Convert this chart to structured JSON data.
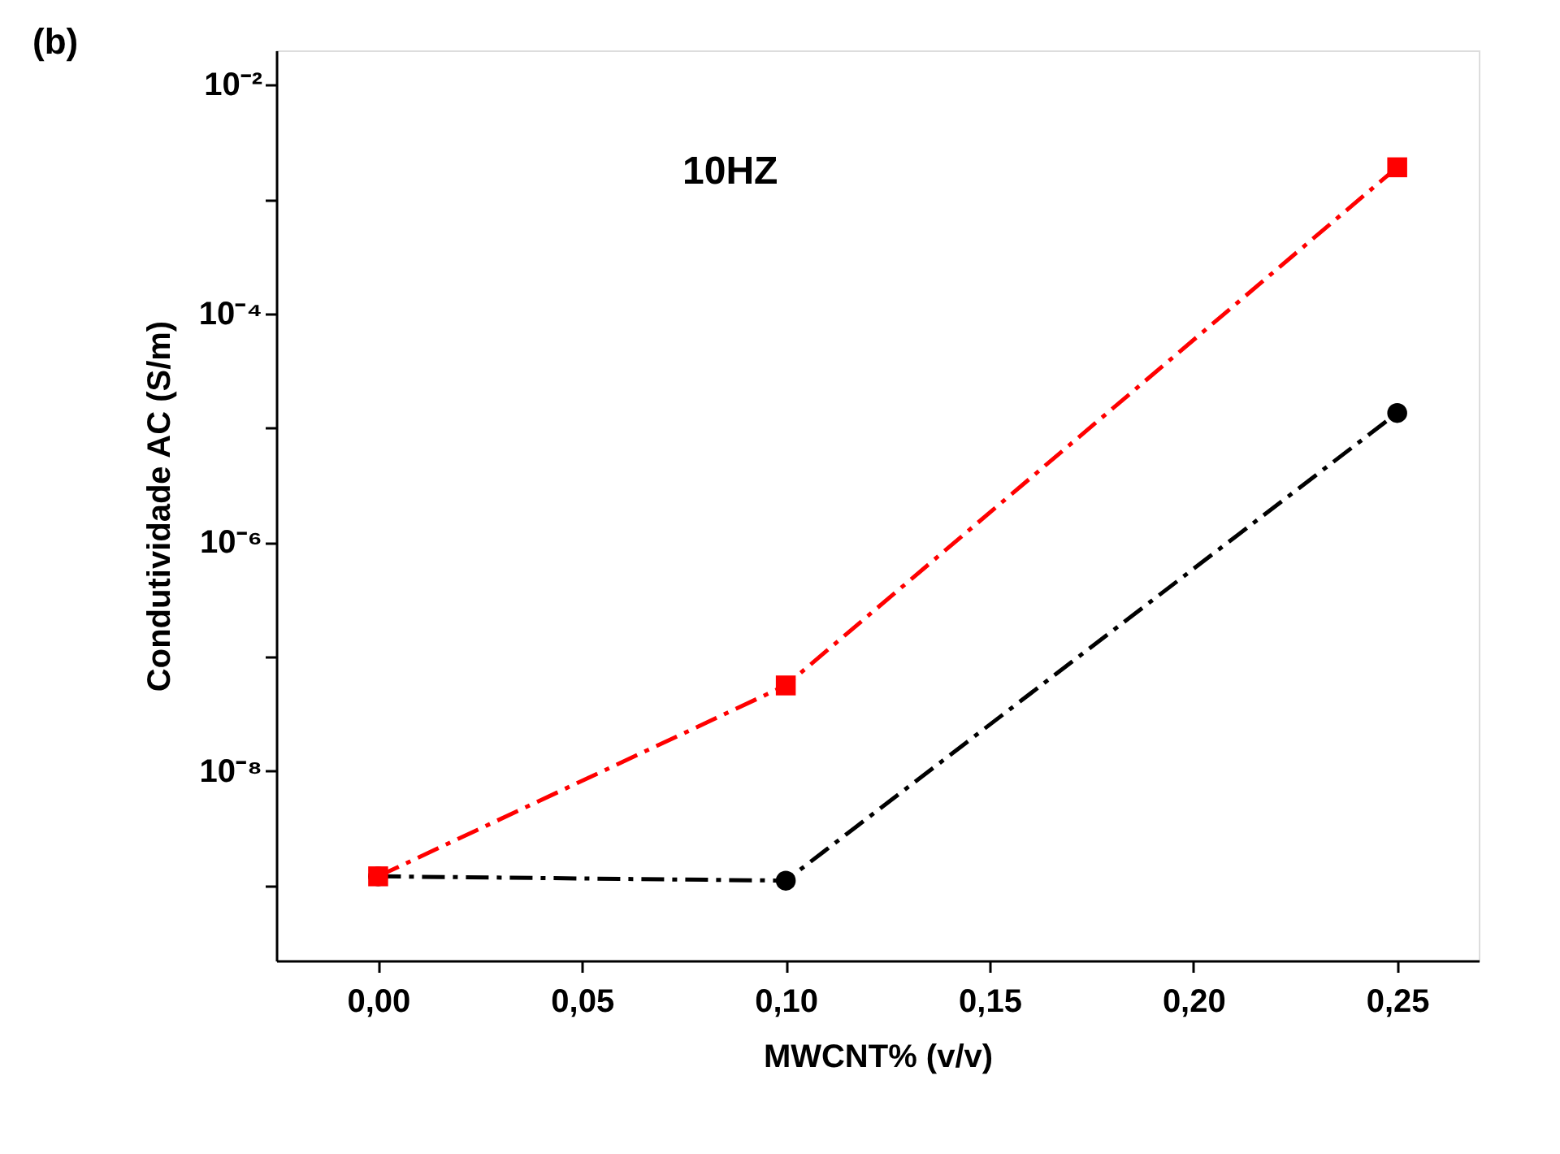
{
  "chart_data": {
    "type": "line",
    "xlabel": "MWCNT% (v/v)",
    "ylabel": "Condutividade AC (S/m)",
    "annotations": [
      "(b)",
      "10HZ"
    ],
    "x": [
      0.0,
      0.1,
      0.25
    ],
    "series": [
      {
        "color": "#ff0000",
        "marker": "square",
        "values": [
          1.2e-09,
          5.6e-08,
          0.0019
        ]
      },
      {
        "color": "#000000",
        "marker": "circle",
        "values": [
          1.2e-09,
          1.1e-09,
          1.35e-05
        ]
      }
    ],
    "log": "y",
    "line_style": "dashed",
    "grid": false,
    "xlim": [
      -0.025,
      0.27
    ],
    "xticks": [
      {
        "value": 0.0,
        "label": "0,00"
      },
      {
        "value": 0.05,
        "label": "0,05"
      },
      {
        "value": 0.1,
        "label": "0,10"
      },
      {
        "value": 0.15,
        "label": "0,15"
      },
      {
        "value": 0.2,
        "label": "0,20"
      },
      {
        "value": 0.25,
        "label": "0,25"
      }
    ],
    "ylim": [
      2.2e-10,
      0.02
    ],
    "yticks": [
      {
        "value": 1e-09,
        "label": null
      },
      {
        "value": 1e-08,
        "label": "10⁻⁸"
      },
      {
        "value": 1e-07,
        "label": null
      },
      {
        "value": 1e-06,
        "label": "10⁻⁶"
      },
      {
        "value": 1e-05,
        "label": null
      },
      {
        "value": 0.0001,
        "label": "10⁻⁴"
      },
      {
        "value": 0.001,
        "label": null
      },
      {
        "value": 0.01,
        "label": "10⁻²"
      }
    ]
  }
}
